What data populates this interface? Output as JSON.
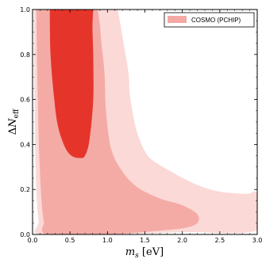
{
  "chart_data": {
    "type": "area",
    "title": "",
    "xlabel": "m_s [eV]",
    "ylabel": "ΔN_eff",
    "xlim": [
      0.0,
      3.0
    ],
    "ylim": [
      0.0,
      1.0
    ],
    "x_ticks": [
      "0.0",
      "0.5",
      "1.0",
      "1.5",
      "2.0",
      "2.5",
      "3.0"
    ],
    "y_ticks": [
      "0.0",
      "0.2",
      "0.4",
      "0.6",
      "0.8",
      "1.0"
    ],
    "grid": false,
    "legend": {
      "position": "top-right",
      "entries": [
        {
          "label": "COSMO (PCHIP)",
          "color": "#f4a9a4"
        }
      ]
    },
    "series": [
      {
        "level": "outer",
        "color": "#fbd9d7",
        "boundary": [
          [
            0.02,
            1.0
          ],
          [
            0.03,
            0.5
          ],
          [
            0.05,
            0.2
          ],
          [
            0.08,
            0.06
          ],
          [
            0.1,
            0.0
          ],
          [
            1.0,
            0.0
          ],
          [
            2.0,
            0.01
          ],
          [
            3.0,
            0.02
          ],
          [
            3.0,
            0.18
          ],
          [
            2.85,
            0.18
          ],
          [
            2.5,
            0.19
          ],
          [
            2.2,
            0.22
          ],
          [
            1.9,
            0.27
          ],
          [
            1.6,
            0.33
          ],
          [
            1.5,
            0.37
          ],
          [
            1.42,
            0.43
          ],
          [
            1.36,
            0.5
          ],
          [
            1.3,
            0.62
          ],
          [
            1.28,
            0.72
          ],
          [
            1.2,
            0.88
          ],
          [
            1.15,
            0.98
          ],
          [
            1.14,
            1.0
          ]
        ]
      },
      {
        "level": "middle",
        "color": "#f4aba6",
        "boundary": [
          [
            0.05,
            1.0
          ],
          [
            0.07,
            0.6
          ],
          [
            0.09,
            0.35
          ],
          [
            0.12,
            0.15
          ],
          [
            0.15,
            0.06
          ],
          [
            0.2,
            0.0
          ],
          [
            1.0,
            0.0
          ],
          [
            1.8,
            0.02
          ],
          [
            2.05,
            0.03
          ],
          [
            2.2,
            0.05
          ],
          [
            2.2,
            0.09
          ],
          [
            2.0,
            0.13
          ],
          [
            1.7,
            0.16
          ],
          [
            1.4,
            0.21
          ],
          [
            1.2,
            0.28
          ],
          [
            1.05,
            0.38
          ],
          [
            0.98,
            0.55
          ],
          [
            0.96,
            0.72
          ],
          [
            0.92,
            0.85
          ],
          [
            0.9,
            0.93
          ],
          [
            0.87,
            1.0
          ]
        ]
      },
      {
        "level": "inner",
        "color": "#e5352b",
        "boundary": [
          [
            0.23,
            1.0
          ],
          [
            0.24,
            0.8
          ],
          [
            0.29,
            0.6
          ],
          [
            0.34,
            0.48
          ],
          [
            0.43,
            0.39
          ],
          [
            0.52,
            0.35
          ],
          [
            0.63,
            0.34
          ],
          [
            0.7,
            0.35
          ],
          [
            0.76,
            0.42
          ],
          [
            0.81,
            0.6
          ],
          [
            0.81,
            0.8
          ],
          [
            0.8,
            0.92
          ],
          [
            0.81,
            1.0
          ]
        ]
      }
    ]
  }
}
